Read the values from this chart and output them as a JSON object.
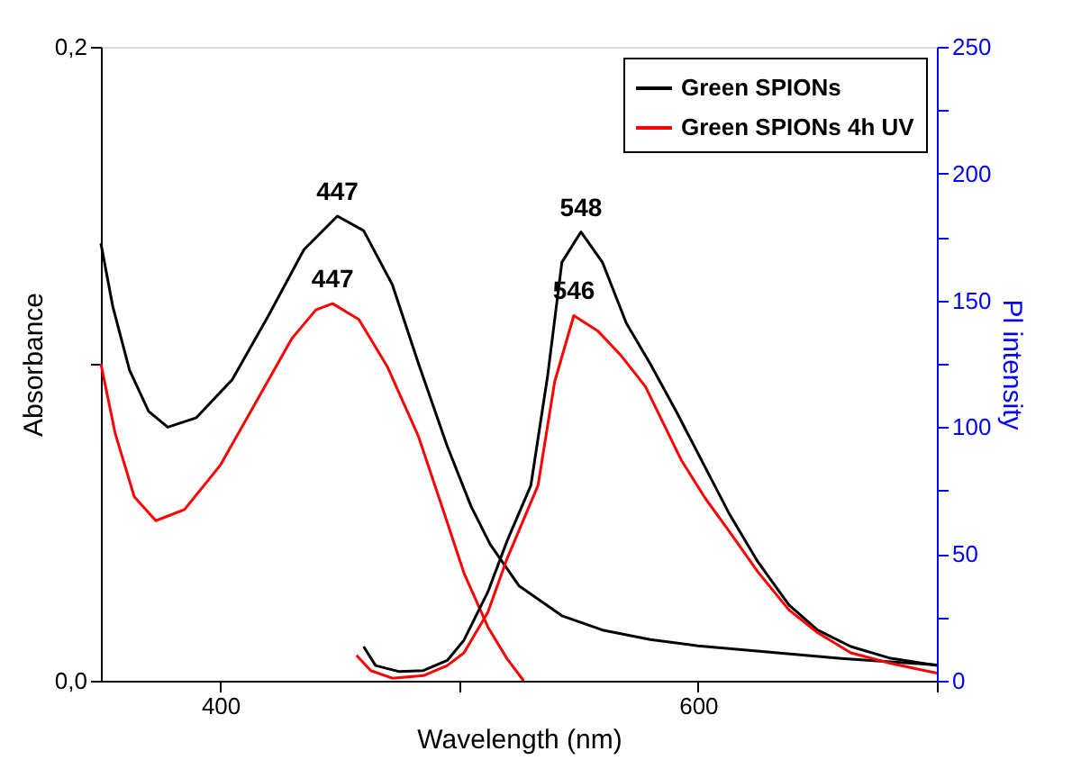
{
  "chart_data": {
    "type": "line",
    "xlabel": "Wavelength (nm)",
    "ylabel": "Absorbance",
    "y2label": "Pl intensity",
    "xlim": [
      350,
      700
    ],
    "xticks": [
      400,
      {
        "value": 500,
        "label": null
      },
      600,
      {
        "value": 700,
        "label": null
      }
    ],
    "ylim": [
      0,
      0.2
    ],
    "yticks": [
      {
        "value": 0,
        "label": "0,0"
      },
      {
        "value": 0.1,
        "label": null
      },
      {
        "value": 0.2,
        "label": "0,2"
      }
    ],
    "y2lim": [
      0,
      250
    ],
    "y2ticks": [
      0,
      {
        "value": 25,
        "label": null
      },
      50,
      {
        "value": 75,
        "label": null
      },
      100,
      {
        "value": 125,
        "label": null
      },
      150,
      {
        "value": 175,
        "label": null
      },
      200,
      {
        "value": 225,
        "label": null
      },
      250
    ],
    "grid": false,
    "legend": "top right",
    "series": [
      {
        "name": "Green SPIONs",
        "color": "#000000",
        "x": [
          350,
          355,
          362,
          370,
          378,
          390,
          405,
          420,
          435,
          449,
          460,
          472,
          483,
          495,
          505,
          513,
          525,
          543,
          560,
          580,
          600,
          630,
          660,
          700
        ],
        "values": [
          0.138,
          0.118,
          0.098,
          0.085,
          0.08,
          0.083,
          0.095,
          0.115,
          0.136,
          0.1466,
          0.142,
          0.125,
          0.1,
          0.074,
          0.055,
          0.043,
          0.03,
          0.0205,
          0.016,
          0.013,
          0.011,
          0.009,
          0.007,
          0.005
        ]
      },
      {
        "name": "Green SPIONs 4h UV",
        "color": "#ff0000",
        "x": [
          350,
          356,
          364,
          373,
          385,
          400,
          415,
          430,
          440,
          447,
          458,
          470,
          483,
          495,
          502,
          512,
          520,
          527
        ],
        "values": [
          0.1,
          0.078,
          0.058,
          0.0505,
          0.054,
          0.068,
          0.088,
          0.108,
          0.117,
          0.119,
          0.114,
          0.099,
          0.077,
          0.05,
          0.034,
          0.017,
          0.007,
          0.0
        ]
      },
      {
        "color": "#000000",
        "axis": "y2",
        "x": [
          460,
          465,
          475,
          485,
          495,
          502,
          512,
          520,
          530,
          537,
          543,
          551,
          560,
          570,
          580,
          591,
          602,
          613,
          625,
          638,
          650,
          664,
          680,
          700
        ],
        "values": [
          13.5,
          6,
          3.6,
          4,
          8,
          16,
          35,
          55,
          77,
          120,
          165,
          177,
          165,
          141,
          125,
          106,
          86,
          66,
          47,
          30,
          20,
          13.5,
          9,
          6
        ]
      },
      {
        "color": "#ff0000",
        "axis": "y2",
        "x": [
          457,
          463,
          472,
          485,
          495,
          502,
          512,
          520,
          533,
          540,
          548,
          558,
          568,
          578,
          593,
          603,
          613,
          625,
          638,
          650,
          664,
          680,
          700
        ],
        "values": [
          10,
          4,
          1,
          2,
          6,
          11,
          27,
          48,
          77,
          118,
          144,
          138,
          128,
          116,
          87,
          72,
          59,
          43,
          28,
          19,
          11,
          7,
          3
        ]
      }
    ],
    "annotations": [
      "447",
      "447",
      "548",
      "546"
    ]
  }
}
